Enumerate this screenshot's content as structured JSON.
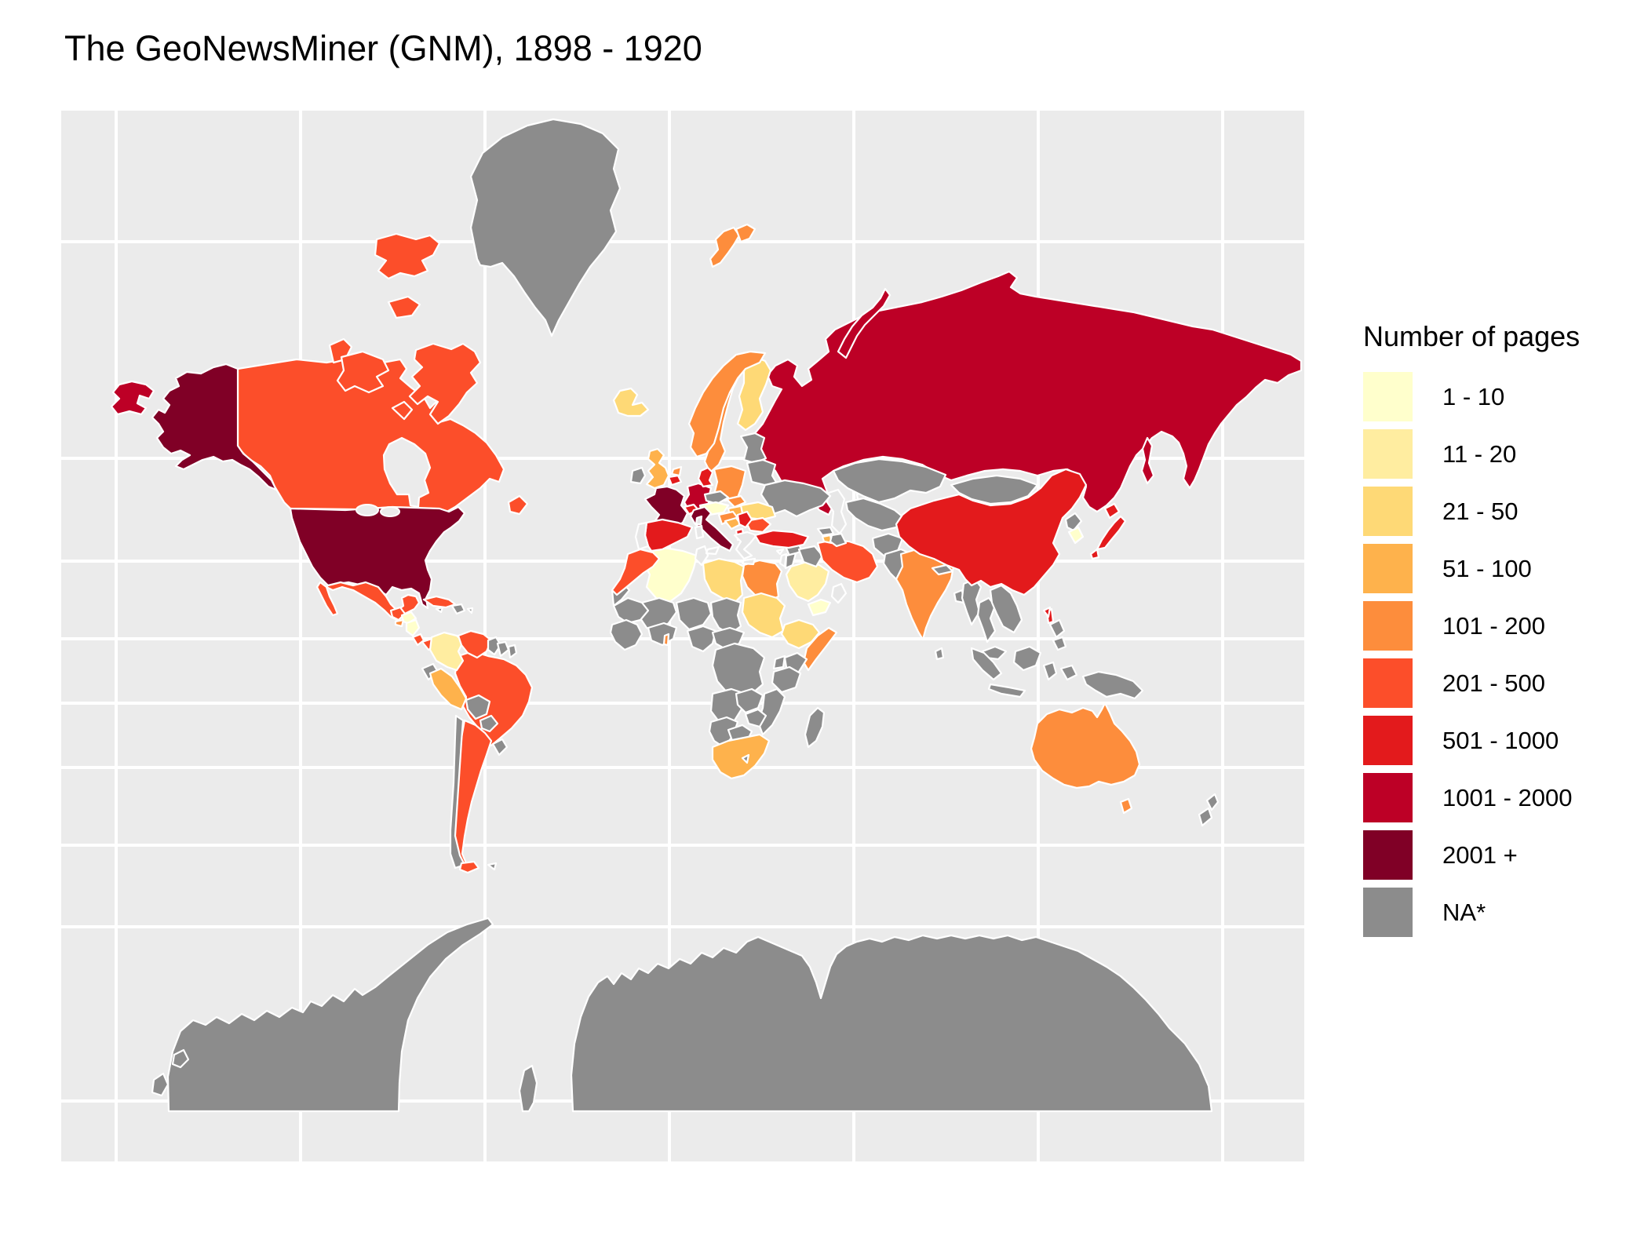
{
  "title": "The GeoNewsMiner (GNM), 1898 - 1920",
  "legend": {
    "title": "Number of pages",
    "items": [
      {
        "label": "1 - 10",
        "color": "#FFFFCC"
      },
      {
        "label": "11 - 20",
        "color": "#FFEDA0"
      },
      {
        "label": "21 - 50",
        "color": "#FED976"
      },
      {
        "label": "51 - 100",
        "color": "#FEB24C"
      },
      {
        "label": "101 - 200",
        "color": "#FD8D3C"
      },
      {
        "label": "201 - 500",
        "color": "#FC4E2A"
      },
      {
        "label": "501 - 1000",
        "color": "#E31A1C"
      },
      {
        "label": "1001 - 2000",
        "color": "#BD0026"
      },
      {
        "label": "2001 +",
        "color": "#800026"
      },
      {
        "label": "NA*",
        "color": "#8C8C8C"
      }
    ]
  },
  "map": {
    "panel_background": "#EBEBEB",
    "gridline_color": "#FFFFFF",
    "country_border_color": "#FFFFFF",
    "na_color": "#8C8C8C",
    "unmapped_color": "#E7E7E7",
    "water_color": "#EBEBEB"
  },
  "chart_data": {
    "type": "choropleth",
    "title": "The GeoNewsMiner (GNM), 1898 - 1920",
    "legend_title": "Number of pages",
    "legend_position": "right",
    "categories": [
      "1 - 10",
      "11 - 20",
      "21 - 50",
      "51 - 100",
      "101 - 200",
      "201 - 500",
      "501 - 1000",
      "1001 - 2000",
      "2001 +",
      "NA*"
    ],
    "na_label": "NA*",
    "country_pages_category": {
      "United States": "2001 +",
      "France": "2001 +",
      "Italy": "2001 +",
      "Russia": "1001 - 2000",
      "Germany": "1001 - 2000",
      "Spain": "501 - 1000",
      "Turkey": "501 - 1000",
      "China": "501 - 1000",
      "Japan": "501 - 1000",
      "Denmark": "501 - 1000",
      "Switzerland": "501 - 1000",
      "Belgium": "501 - 1000",
      "Serbia": "501 - 1000",
      "Albania": "501 - 1000",
      "Taiwan": "501 - 1000",
      "Philippines": "501 - 1000",
      "Canada": "201 - 500",
      "Mexico": "201 - 500",
      "Guatemala": "201 - 500",
      "Costa Rica": "201 - 500",
      "Panama": "201 - 500",
      "Cuba": "201 - 500",
      "Venezuela": "201 - 500",
      "Brazil": "201 - 500",
      "Argentina": "201 - 500",
      "Morocco": "201 - 500",
      "Iran": "201 - 500",
      "Bulgaria": "201 - 500",
      "Norway": "101 - 200",
      "Sweden": "101 - 200",
      "Poland": "101 - 200",
      "Netherlands": "101 - 200",
      "Slovakia": "101 - 200",
      "Croatia": "101 - 200",
      "Egypt": "101 - 200",
      "Somalia": "101 - 200",
      "Togo": "101 - 200",
      "El Salvador": "101 - 200",
      "India": "101 - 200",
      "Australia": "101 - 200",
      "United Kingdom": "51 - 100",
      "Peru": "51 - 100",
      "South Africa": "51 - 100",
      "Hungary": "51 - 100",
      "Bosnia and Herzegovina": "51 - 100",
      "Armenia": "51 - 100",
      "Iceland": "21 - 50",
      "Finland": "21 - 50",
      "Romania": "21 - 50",
      "Libya": "21 - 50",
      "Sudan": "21 - 50",
      "Ethiopia": "21 - 50",
      "Colombia": "11 - 20",
      "Saudi Arabia": "11 - 20",
      "Algeria": "1 - 10",
      "Honduras": "1 - 10",
      "Nicaragua": "1 - 10",
      "Austria": "1 - 10",
      "South Korea": "1 - 10",
      "Yemen": "1 - 10",
      "Greenland": "NA*",
      "Ireland": "NA*",
      "Baltic States": "NA*",
      "Belarus": "NA*",
      "Ukraine": "NA*",
      "Czechia": "NA*",
      "Mongolia": "NA*",
      "Kazakhstan": "NA*",
      "Central Asia": "NA*",
      "Afghanistan": "NA*",
      "Pakistan": "NA*",
      "Nepal": "NA*",
      "Bangladesh": "NA*",
      "Sri Lanka": "NA*",
      "Myanmar": "NA*",
      "Thailand": "NA*",
      "Indochina": "NA*",
      "Malaysia": "NA*",
      "Indonesia": "NA*",
      "New Guinea": "NA*",
      "New Zealand": "NA*",
      "North Korea": "NA*",
      "Georgia": "NA*",
      "Azerbaijan": "NA*",
      "Syria": "NA*",
      "Iraq": "NA*",
      "Jordan": "NA*",
      "Western Sahara": "NA*",
      "Mauritania": "NA*",
      "Mali": "NA*",
      "West Africa": "NA*",
      "Niger": "NA*",
      "Chad": "NA*",
      "Nigeria": "NA*",
      "Central Africa": "NA*",
      "DR Congo": "NA*",
      "Uganda": "NA*",
      "Kenya": "NA*",
      "Tanzania": "NA*",
      "Angola": "NA*",
      "Zambia": "NA*",
      "Zimbabwe": "NA*",
      "Mozambique": "NA*",
      "Namibia": "NA*",
      "Botswana": "NA*",
      "Lesotho": "NA*",
      "Madagascar": "NA*",
      "Ecuador": "NA*",
      "Bolivia": "NA*",
      "Paraguay": "NA*",
      "Chile": "NA*",
      "Uruguay": "NA*",
      "Guyana": "NA*",
      "Suriname": "NA*",
      "French Guiana": "NA*",
      "Jamaica": "NA*",
      "Hispaniola": "NA*",
      "Puerto Rico": "NA*",
      "Falkland Islands": "NA*",
      "South Georgia": "NA*",
      "Antarctica": "NA*"
    }
  }
}
